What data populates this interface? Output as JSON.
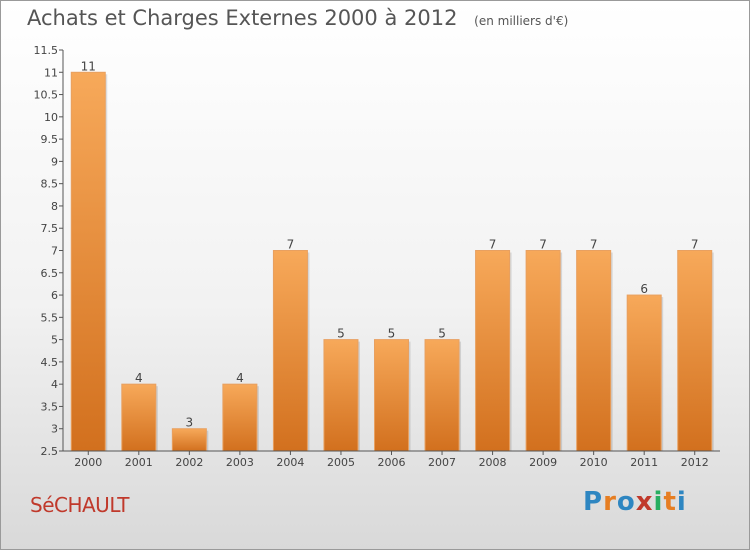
{
  "header": {
    "title": "Achats et Charges Externes 2000 à 2012",
    "unit": "(en milliers d'€)"
  },
  "commune": "SéCHAULT",
  "brand": {
    "letters": [
      "P",
      "r",
      "o",
      "x",
      "i",
      "t",
      "i"
    ],
    "colors": [
      "#2e86c1",
      "#e67e22",
      "#2e86c1",
      "#c0392b",
      "#27ae60",
      "#e67e22",
      "#2e86c1"
    ]
  },
  "chart_data": {
    "type": "bar",
    "title": "Achats et Charges Externes 2000 à 2012",
    "subtitle": "(en milliers d'€)",
    "xlabel": "",
    "ylabel": "",
    "categories": [
      "2000",
      "2001",
      "2002",
      "2003",
      "2004",
      "2005",
      "2006",
      "2007",
      "2008",
      "2009",
      "2010",
      "2011",
      "2012"
    ],
    "values": [
      11,
      4,
      3,
      4,
      7,
      5,
      5,
      5,
      7,
      7,
      7,
      6,
      7
    ],
    "ylim": [
      2.5,
      11.5
    ],
    "yticks": [
      2.5,
      3,
      3.5,
      4,
      4.5,
      5,
      5.5,
      6,
      6.5,
      7,
      7.5,
      8,
      8.5,
      9,
      9.5,
      10,
      10.5,
      11,
      11.5
    ],
    "ytick_labels": [
      "2.5",
      "3",
      "3.5",
      "4",
      "4.5",
      "5",
      "5.5",
      "6",
      "6.5",
      "7",
      "7.5",
      "8",
      "8.5",
      "9",
      "9.5",
      "10",
      "10.5",
      "11",
      "11.5"
    ],
    "data_labels": [
      "11",
      "4",
      "3",
      "4",
      "7",
      "5",
      "5",
      "5",
      "7",
      "7",
      "7",
      "6",
      "7"
    ],
    "bar_color": "#f0a050",
    "grid": false,
    "legend": "none"
  }
}
